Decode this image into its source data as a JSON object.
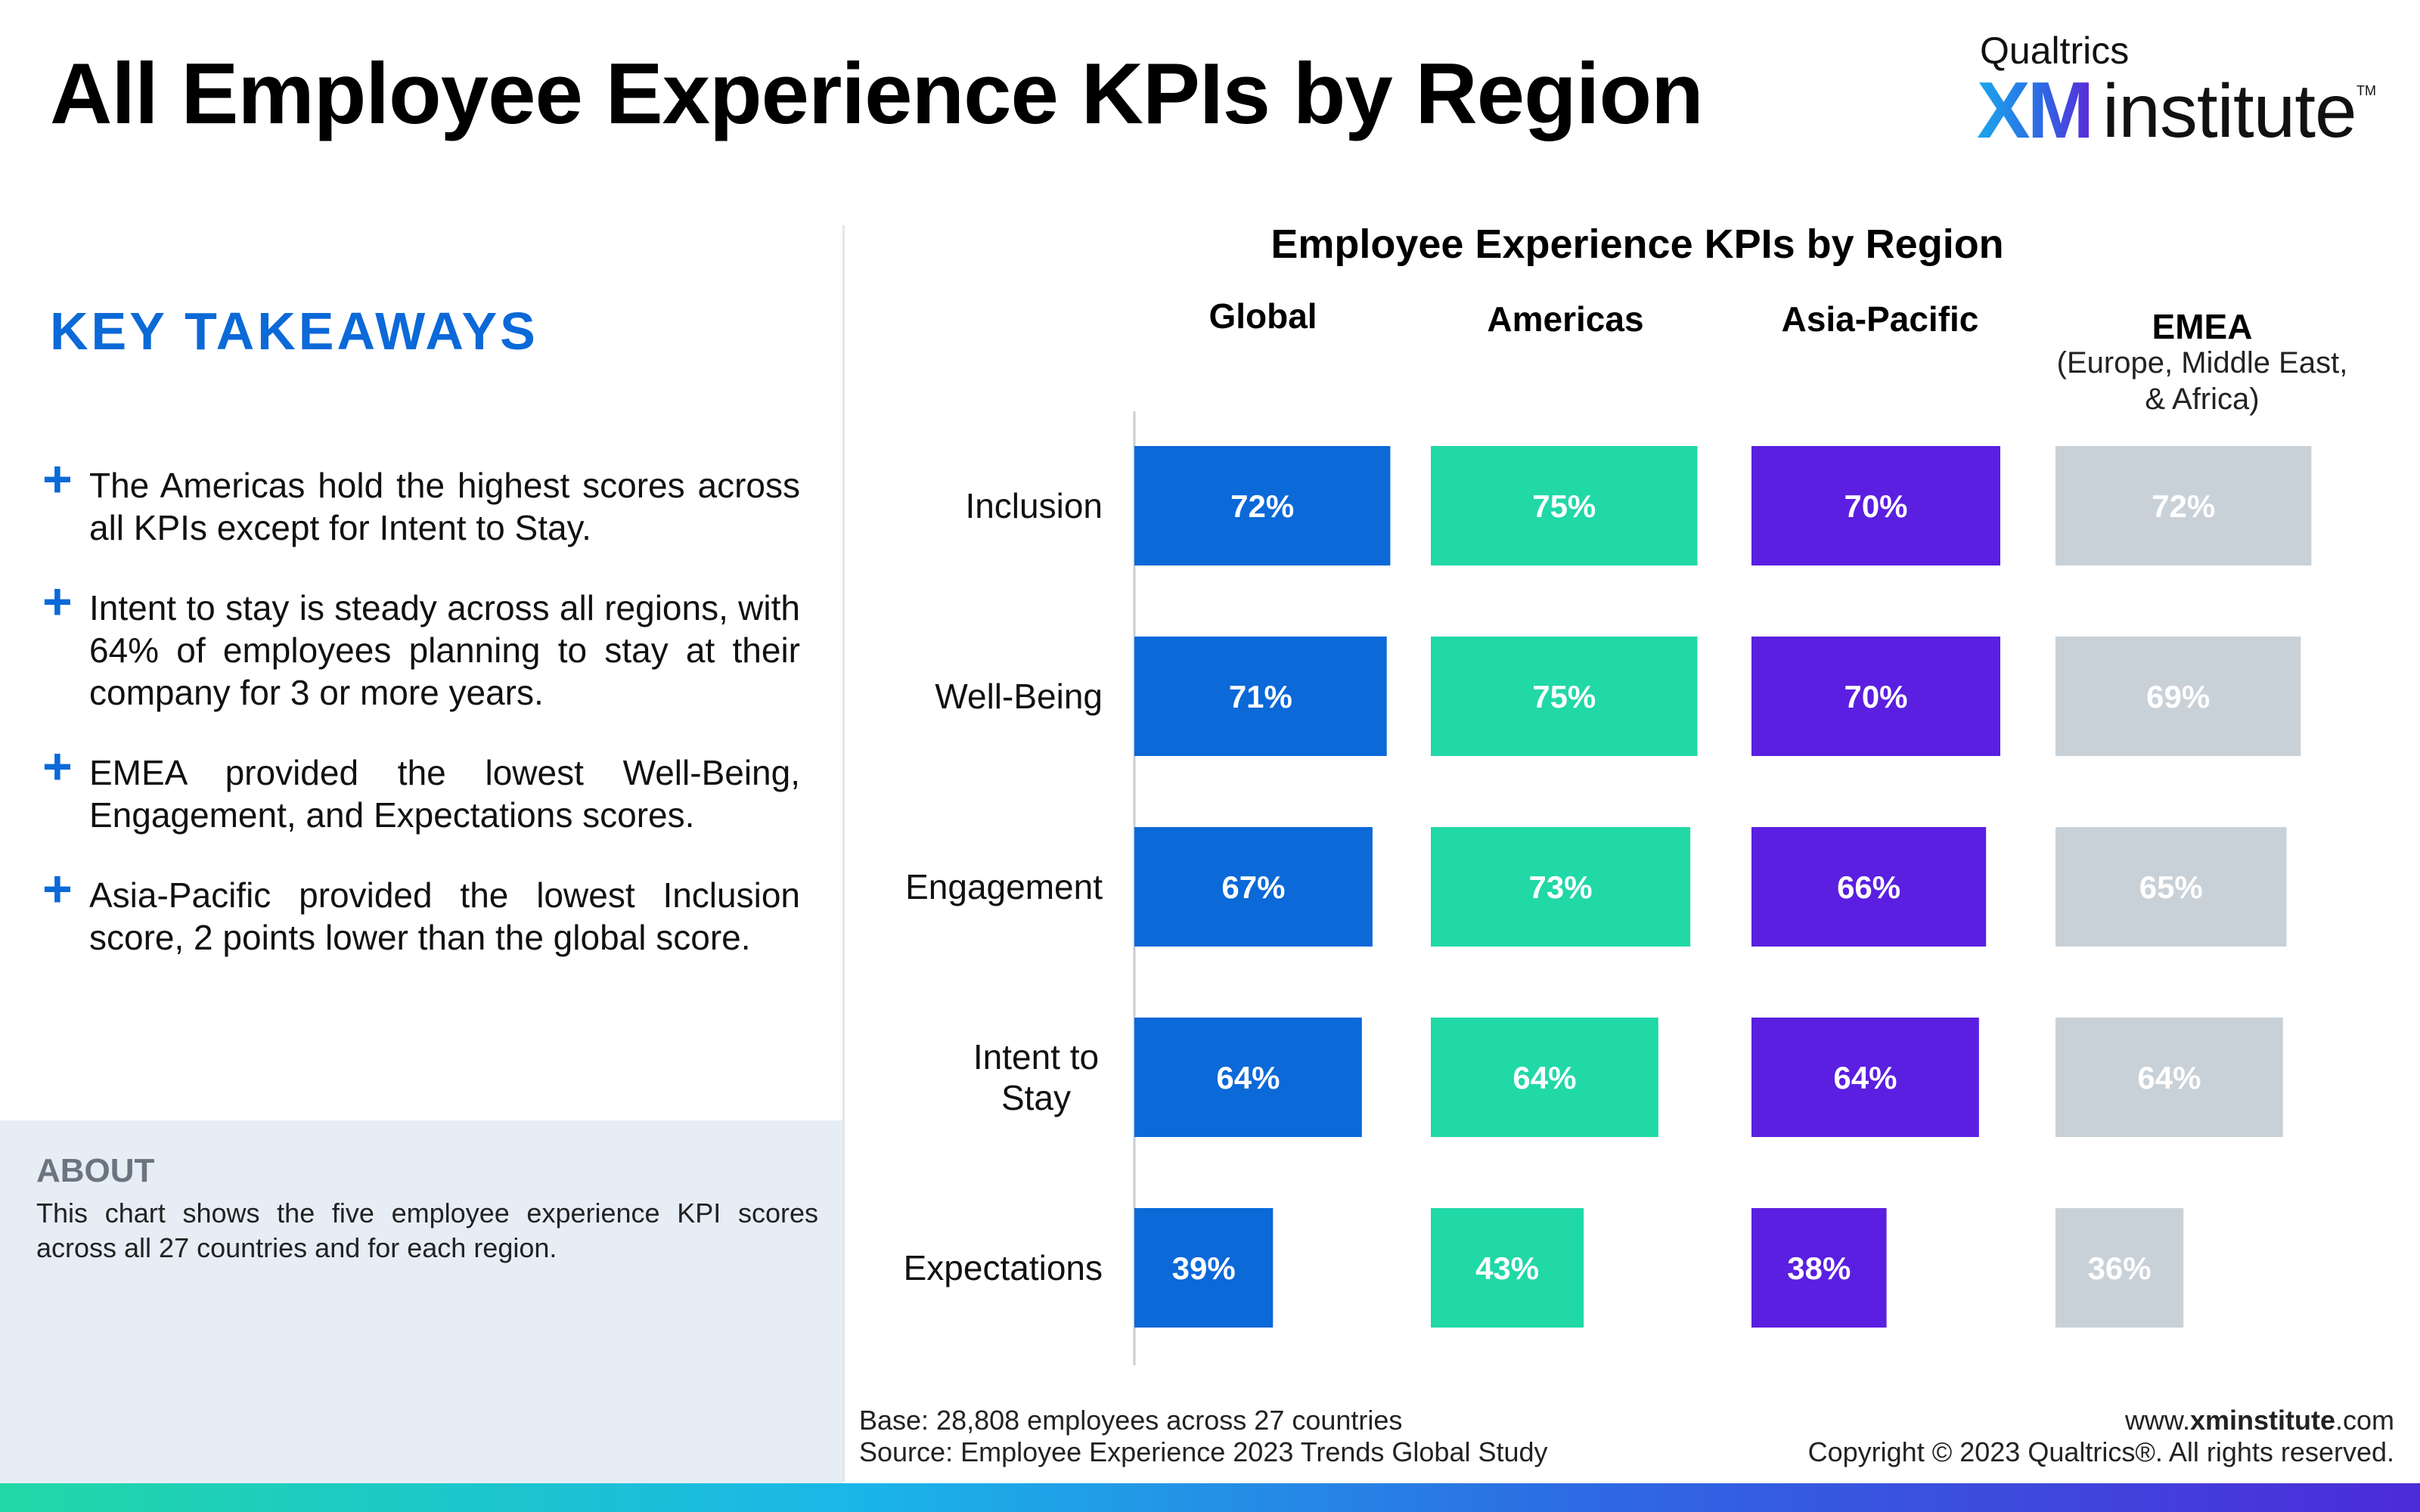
{
  "title": "All Employee Experience KPIs by Region",
  "logo": {
    "top": "Qualtrics",
    "xm": "XM",
    "name": "institute",
    "tm": "TM"
  },
  "takeaways": {
    "heading": "KEY TAKEAWAYS",
    "items": [
      "The Americas hold the highest scores across all KPIs except for Intent to Stay.",
      "Intent to stay is steady across all regions, with 64% of employees planning to stay at their company for 3 or more years.",
      "EMEA provided the lowest Well-Being, Engagement, and Expectations scores.",
      "Asia-Pacific provided the lowest Inclusion score, 2 points lower than the global score."
    ]
  },
  "about": {
    "title": "ABOUT",
    "text": "This chart shows the five employee experience KPI scores across all 27 countries and for each region."
  },
  "chart_data": {
    "type": "bar",
    "orientation": "horizontal",
    "layout": "small-multiples",
    "title": "Employee Experience KPIs by Region",
    "categories": [
      "Inclusion",
      "Well-Being",
      "Engagement",
      "Intent to Stay",
      "Expectations"
    ],
    "unit": "%",
    "series": [
      {
        "name": "Global",
        "subtitle": "",
        "color": "#0b69d8",
        "values": [
          72,
          71,
          67,
          64,
          39
        ]
      },
      {
        "name": "Americas",
        "subtitle": "",
        "color": "#21d8a7",
        "values": [
          75,
          75,
          73,
          64,
          43
        ]
      },
      {
        "name": "Asia-Pacific",
        "subtitle": "",
        "color": "#5a1fe0",
        "values": [
          70,
          70,
          66,
          64,
          38
        ]
      },
      {
        "name": "EMEA",
        "subtitle": "(Europe, Middle East, & Africa)",
        "color": "#c9d1d8",
        "values": [
          72,
          69,
          65,
          64,
          36
        ]
      }
    ]
  },
  "footer": {
    "base": "Base: 28,808 employees across 27 countries",
    "source": "Source: Employee Experience 2023 Trends Global Study",
    "url_prefix": "www.",
    "url_bold": "xminstitute",
    "url_suffix": ".com",
    "copyright": "Copyright © 2023 Qualtrics®. All rights reserved."
  }
}
